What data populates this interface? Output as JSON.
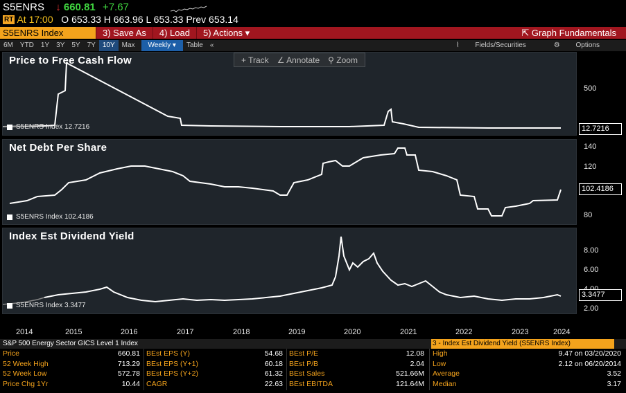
{
  "quote": {
    "ticker": "S5ENRS",
    "arrow": "↓",
    "last": "660.81",
    "change": "+7.67",
    "badge": "RT",
    "time": "At 17:00",
    "ohlc": "O 653.33 H 663.96 L 653.33 Prev 653.14"
  },
  "toolbar": {
    "security": "S5ENRS Index",
    "save": "3) Save As",
    "load": "4) Load",
    "actions": "5) Actions ▾",
    "graph_fundamentals": "Graph Fundamentals"
  },
  "ranges": [
    "6M",
    "YTD",
    "1Y",
    "3Y",
    "5Y",
    "7Y",
    "10Y",
    "Max"
  ],
  "selected_range": "10Y",
  "frequency": "Weekly ▾",
  "table_btn": "Table",
  "collapse": "«",
  "fields_btn": "Fields/Securities",
  "options_btn": "Options",
  "tools": {
    "track": "+ Track",
    "annotate": "∠ Annotate",
    "zoom": "⚲ Zoom"
  },
  "panels": [
    {
      "title": "Price to Free Cash Flow",
      "legend": "S5ENRS Index  12.7216",
      "value_box": "12.7216",
      "yticks": [
        "500"
      ]
    },
    {
      "title": "Net Debt Per Share",
      "legend": "S5ENRS Index  102.4186",
      "value_box": "102.4186",
      "yticks": [
        "140",
        "120",
        "80"
      ]
    },
    {
      "title": "Index Est Dividend Yield",
      "legend": "S5ENRS Index  3.3477",
      "value_box": "3.3477",
      "yticks": [
        "8.00",
        "6.00",
        "4.00",
        "2.00"
      ]
    }
  ],
  "xaxis": [
    "2014",
    "2015",
    "2016",
    "2017",
    "2018",
    "2019",
    "2020",
    "2021",
    "2022",
    "2023",
    "2024"
  ],
  "bottom": {
    "header": "S&P 500 Energy Sector GICS Level 1 Index",
    "dropdown": "3 - Index Est Dividend Yield (S5ENRS Index)",
    "col1": [
      {
        "label": "Price",
        "value": "660.81"
      },
      {
        "label": "52 Week High",
        "value": "713.29"
      },
      {
        "label": "52 Week Low",
        "value": "572.78"
      },
      {
        "label": "Price Chg 1Yr",
        "value": "10.44"
      }
    ],
    "col2": [
      {
        "label": "BEst EPS (Y)",
        "value": "54.68"
      },
      {
        "label": "BEst EPS (Y+1)",
        "value": "60.18"
      },
      {
        "label": "BEst EPS (Y+2)",
        "value": "61.32"
      },
      {
        "label": "CAGR",
        "value": "22.63"
      }
    ],
    "col3": [
      {
        "label": "BEst P/E",
        "value": "12.08"
      },
      {
        "label": "BEst P/B",
        "value": "2.04"
      },
      {
        "label": "BEst Sales",
        "value": "521.66M"
      },
      {
        "label": "BEst EBITDA",
        "value": "121.64M"
      }
    ],
    "col4": [
      {
        "label": "High",
        "value": "9.47 on 03/20/2020"
      },
      {
        "label": "Low",
        "value": "2.12 on 06/20/2014"
      },
      {
        "label": "Average",
        "value": "3.52"
      },
      {
        "label": "Median",
        "value": "3.17"
      }
    ]
  },
  "colors": {
    "orange": "#f4a31c",
    "red_bar": "#a1161f",
    "green": "#3fd33f",
    "panel_bg": "#1f252b"
  }
}
